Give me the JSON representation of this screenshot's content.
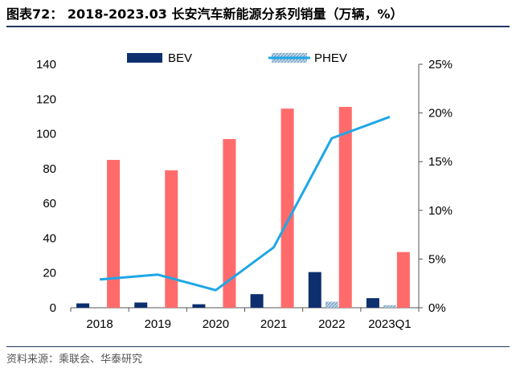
{
  "title": "图表72： 2018-2023.03 长安汽车新能源分系列销量（万辆，%）",
  "source": "资料来源：乘联会、华泰研究",
  "chart_data": {
    "type": "bar",
    "categories": [
      "2018",
      "2019",
      "2020",
      "2021",
      "2022",
      "2023Q1"
    ],
    "y_left": {
      "ticks": [
        "0",
        "20",
        "40",
        "60",
        "80",
        "100",
        "120",
        "140"
      ],
      "ylim": [
        0,
        140
      ]
    },
    "y_right": {
      "ticks": [
        "0%",
        "5%",
        "10%",
        "15%",
        "20%",
        "25%"
      ],
      "ylim": [
        0,
        0.25
      ]
    },
    "series": [
      {
        "name": "BEV",
        "kind": "bar",
        "axis": "left",
        "color": "#0d2f6e",
        "values": [
          2.5,
          3.0,
          2.0,
          7.8,
          20.5,
          5.5
        ]
      },
      {
        "name": "PHEV",
        "kind": "bar",
        "axis": "left",
        "color": "#9dbbd4",
        "hatched": true,
        "values": [
          0,
          0,
          0,
          0,
          3.5,
          1.5
        ]
      },
      {
        "kind": "bar",
        "axis": "left",
        "color": "#ff6b6b",
        "values": [
          85,
          79,
          97,
          114.5,
          115.5,
          32
        ]
      },
      {
        "kind": "line",
        "axis": "right",
        "color": "#1ea7e6",
        "values": [
          0.029,
          0.034,
          0.018,
          0.062,
          0.174,
          0.196
        ]
      }
    ],
    "legend": {
      "position": "top"
    },
    "grid": false
  }
}
